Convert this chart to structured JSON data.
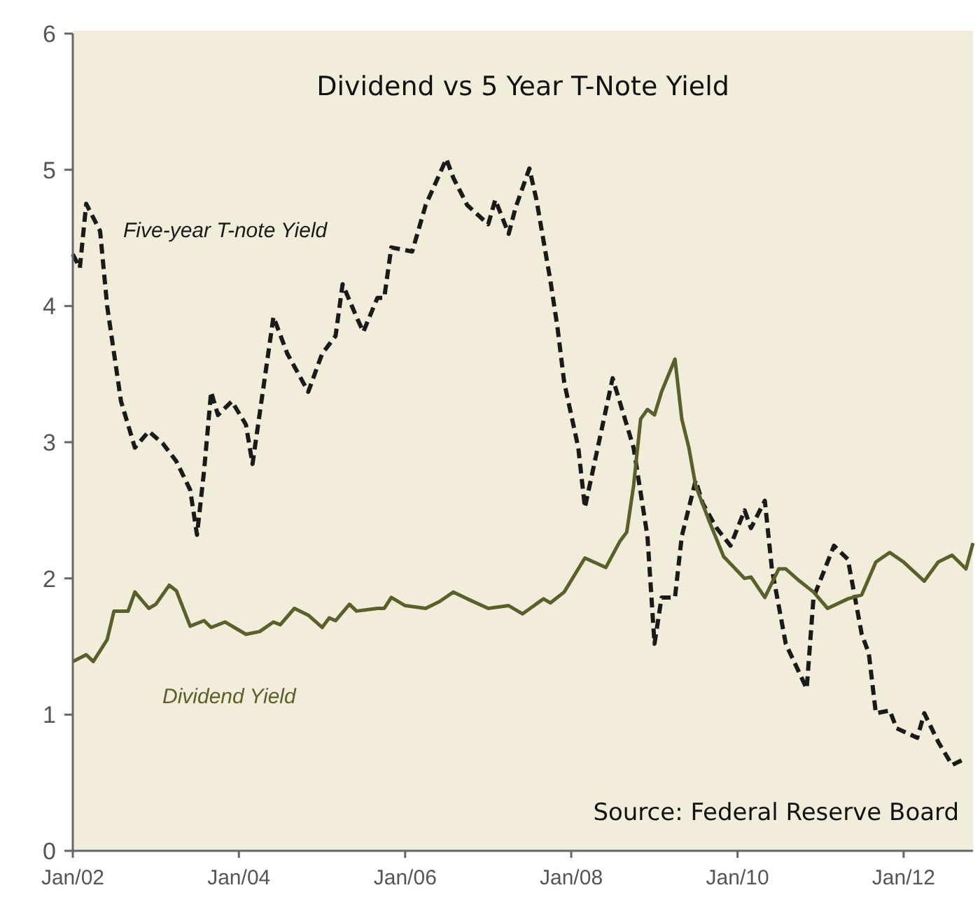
{
  "chart_data": {
    "type": "line",
    "title": "Dividend vs 5 Year T-Note Yield",
    "annotations": [
      "Source: Federal Reserve Board"
    ],
    "series": [
      {
        "name": "Five-year T-note Yield",
        "color": "#1a1a1a",
        "line_style": "dashed",
        "x": [
          "2002-01",
          "2002-02",
          "2002-03",
          "2002-05",
          "2002-06",
          "2002-08",
          "2002-10",
          "2002-12",
          "2003-02",
          "2003-04",
          "2003-06",
          "2003-07",
          "2003-08",
          "2003-09",
          "2003-10",
          "2003-12",
          "2004-02",
          "2004-03",
          "2004-06",
          "2004-08",
          "2004-11",
          "2005-01",
          "2005-03",
          "2005-04",
          "2005-06",
          "2005-07",
          "2005-09",
          "2005-10",
          "2005-11",
          "2006-02",
          "2006-04",
          "2006-07",
          "2006-08",
          "2006-10",
          "2007-01",
          "2007-02",
          "2007-04",
          "2007-05",
          "2007-07",
          "2007-08",
          "2007-10",
          "2007-11",
          "2007-12",
          "2008-02",
          "2008-03",
          "2008-07",
          "2008-10",
          "2008-12",
          "2009-01",
          "2009-02",
          "2009-04",
          "2009-05",
          "2009-07",
          "2009-08",
          "2009-10",
          "2009-12",
          "2010-02",
          "2010-03",
          "2010-05",
          "2010-06",
          "2010-08",
          "2010-11",
          "2010-12",
          "2011-03",
          "2011-05",
          "2011-07",
          "2011-08",
          "2011-09",
          "2011-11",
          "2011-12",
          "2012-03",
          "2012-04",
          "2012-06",
          "2012-08",
          "2012-10"
        ],
        "values": [
          4.38,
          4.28,
          4.75,
          4.55,
          4.0,
          3.3,
          2.96,
          3.08,
          2.99,
          2.86,
          2.65,
          2.32,
          2.79,
          3.37,
          3.2,
          3.3,
          3.13,
          2.84,
          3.92,
          3.65,
          3.37,
          3.65,
          3.78,
          4.16,
          3.92,
          3.81,
          4.06,
          4.06,
          4.43,
          4.4,
          4.74,
          5.08,
          4.94,
          4.74,
          4.6,
          4.78,
          4.53,
          4.72,
          5.01,
          4.78,
          4.19,
          3.85,
          3.44,
          2.96,
          2.52,
          3.47,
          2.96,
          2.31,
          1.52,
          1.86,
          1.86,
          2.31,
          2.72,
          2.55,
          2.37,
          2.24,
          2.5,
          2.37,
          2.57,
          2.07,
          1.52,
          1.19,
          1.86,
          2.24,
          2.14,
          1.59,
          1.45,
          1.01,
          1.03,
          0.9,
          0.83,
          1.01,
          0.8,
          0.63,
          0.68
        ]
      },
      {
        "name": "Dividend Yield",
        "color": "#5b5f2a",
        "line_style": "solid",
        "x": [
          "2002-01",
          "2002-03",
          "2002-04",
          "2002-06",
          "2002-07",
          "2002-09",
          "2002-10",
          "2002-12",
          "2003-01",
          "2003-03",
          "2003-04",
          "2003-06",
          "2003-08",
          "2003-09",
          "2003-11",
          "2004-02",
          "2004-04",
          "2004-06",
          "2004-07",
          "2004-09",
          "2004-11",
          "2005-01",
          "2005-02",
          "2005-03",
          "2005-05",
          "2005-06",
          "2005-09",
          "2005-10",
          "2005-11",
          "2006-01",
          "2006-04",
          "2006-06",
          "2006-08",
          "2006-10",
          "2007-01",
          "2007-04",
          "2007-06",
          "2007-09",
          "2007-10",
          "2007-12",
          "2008-02",
          "2008-03",
          "2008-06",
          "2008-08",
          "2008-09",
          "2008-10",
          "2008-11",
          "2008-12",
          "2009-01",
          "2009-02",
          "2009-04",
          "2009-05",
          "2009-06",
          "2009-07",
          "2009-09",
          "2009-11",
          "2010-02",
          "2010-03",
          "2010-05",
          "2010-07",
          "2010-08",
          "2010-10",
          "2010-12",
          "2011-02",
          "2011-05",
          "2011-07",
          "2011-09",
          "2011-11",
          "2012-01",
          "2012-04",
          "2012-06",
          "2012-08",
          "2012-10",
          "2012-11"
        ],
        "values": [
          1.39,
          1.44,
          1.39,
          1.55,
          1.76,
          1.76,
          1.9,
          1.78,
          1.81,
          1.95,
          1.91,
          1.65,
          1.69,
          1.64,
          1.68,
          1.59,
          1.61,
          1.68,
          1.66,
          1.78,
          1.73,
          1.64,
          1.71,
          1.69,
          1.81,
          1.76,
          1.78,
          1.78,
          1.86,
          1.8,
          1.78,
          1.83,
          1.9,
          1.85,
          1.78,
          1.8,
          1.74,
          1.85,
          1.82,
          1.9,
          2.07,
          2.15,
          2.08,
          2.27,
          2.34,
          2.68,
          3.17,
          3.24,
          3.2,
          3.37,
          3.61,
          3.17,
          2.96,
          2.68,
          2.41,
          2.16,
          2.0,
          2.01,
          1.86,
          2.07,
          2.07,
          1.98,
          1.9,
          1.78,
          1.85,
          1.88,
          2.12,
          2.19,
          2.12,
          1.98,
          2.12,
          2.17,
          2.07,
          2.26
        ]
      }
    ],
    "xlim": [
      "2002-01",
      "2012-11"
    ],
    "xticks": [
      {
        "value": "2002-01",
        "label": "Jan/02"
      },
      {
        "value": "2004-01",
        "label": "Jan/04"
      },
      {
        "value": "2006-01",
        "label": "Jan/06"
      },
      {
        "value": "2008-01",
        "label": "Jan/08"
      },
      {
        "value": "2010-01",
        "label": "Jan/10"
      },
      {
        "value": "2012-01",
        "label": "Jan/12"
      }
    ],
    "ylim": [
      0,
      6
    ],
    "yticks": [
      0,
      1,
      2,
      3,
      4,
      5,
      6
    ],
    "grid": false,
    "legend": false
  }
}
